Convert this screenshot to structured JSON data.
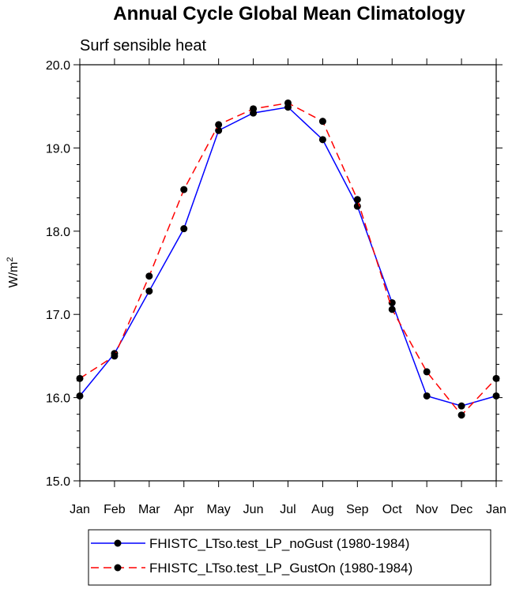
{
  "chart_data": {
    "type": "line",
    "title": "Annual Cycle Global Mean Climatology",
    "subtitle": "Surf sensible heat",
    "xlabel": "",
    "ylabel": "W/m",
    "ylabel_superscript": "2",
    "categories": [
      "Jan",
      "Feb",
      "Mar",
      "Apr",
      "May",
      "Jun",
      "Jul",
      "Aug",
      "Sep",
      "Oct",
      "Nov",
      "Dec",
      "Jan"
    ],
    "ylim": [
      15.0,
      20.0
    ],
    "yticks": [
      15.0,
      16.0,
      17.0,
      18.0,
      19.0,
      20.0
    ],
    "ytick_labels": [
      "15.0",
      "16.0",
      "17.0",
      "18.0",
      "19.0",
      "20.0"
    ],
    "grid": false,
    "legend_position": "bottom",
    "series": [
      {
        "name": "FHISTC_LTso.test_LP_noGust (1980-1984)",
        "color": "#0000ff",
        "dash": "solid",
        "marker": "filled-circle",
        "values": [
          16.02,
          16.53,
          17.28,
          18.03,
          19.21,
          19.42,
          19.49,
          19.1,
          18.3,
          17.14,
          16.02,
          15.9,
          16.02
        ]
      },
      {
        "name": "FHISTC_LTso.test_LP_GustOn (1980-1984)",
        "color": "#ff0000",
        "dash": "dashed",
        "marker": "filled-circle",
        "values": [
          16.23,
          16.5,
          17.46,
          18.5,
          19.28,
          19.47,
          19.54,
          19.32,
          18.38,
          17.06,
          16.31,
          15.79,
          16.23
        ]
      }
    ]
  }
}
